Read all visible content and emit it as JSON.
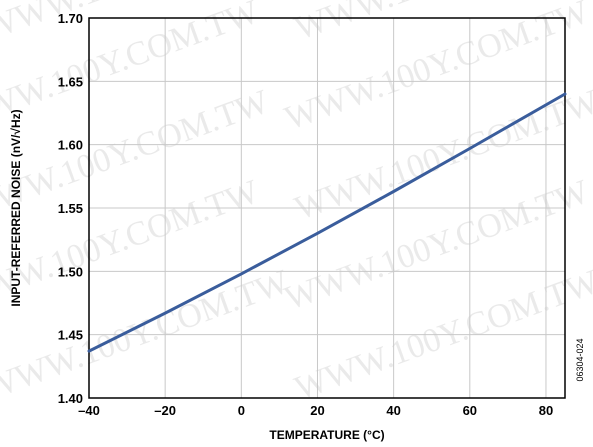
{
  "figure_id": "06304-024",
  "watermark_text": "WWW.100Y.COM.TW",
  "colors": {
    "series": "#3a5d9c",
    "grid": "#c8c8c8",
    "frame": "#000000",
    "watermark": "#d9d9d9"
  },
  "chart_data": {
    "type": "line",
    "title": "",
    "xlabel": "TEMPERATURE (°C)",
    "ylabel": "INPUT-REFERRED NOISE (nV/√Hz)",
    "xlim": [
      -40,
      85
    ],
    "ylim": [
      1.4,
      1.7
    ],
    "grid": true,
    "x_ticks": [
      -40,
      -20,
      0,
      20,
      40,
      60,
      80
    ],
    "x_tick_labels": [
      "–40",
      "–20",
      "0",
      "20",
      "40",
      "60",
      "80"
    ],
    "y_ticks": [
      1.4,
      1.45,
      1.5,
      1.55,
      1.6,
      1.65,
      1.7
    ],
    "y_tick_labels": [
      "1.40",
      "1.45",
      "1.50",
      "1.55",
      "1.60",
      "1.65",
      "1.70"
    ],
    "series": [
      {
        "x": [
          -40,
          -20,
          0,
          20,
          40,
          60,
          85
        ],
        "y": [
          1.437,
          1.467,
          1.498,
          1.53,
          1.563,
          1.597,
          1.64
        ]
      }
    ]
  }
}
